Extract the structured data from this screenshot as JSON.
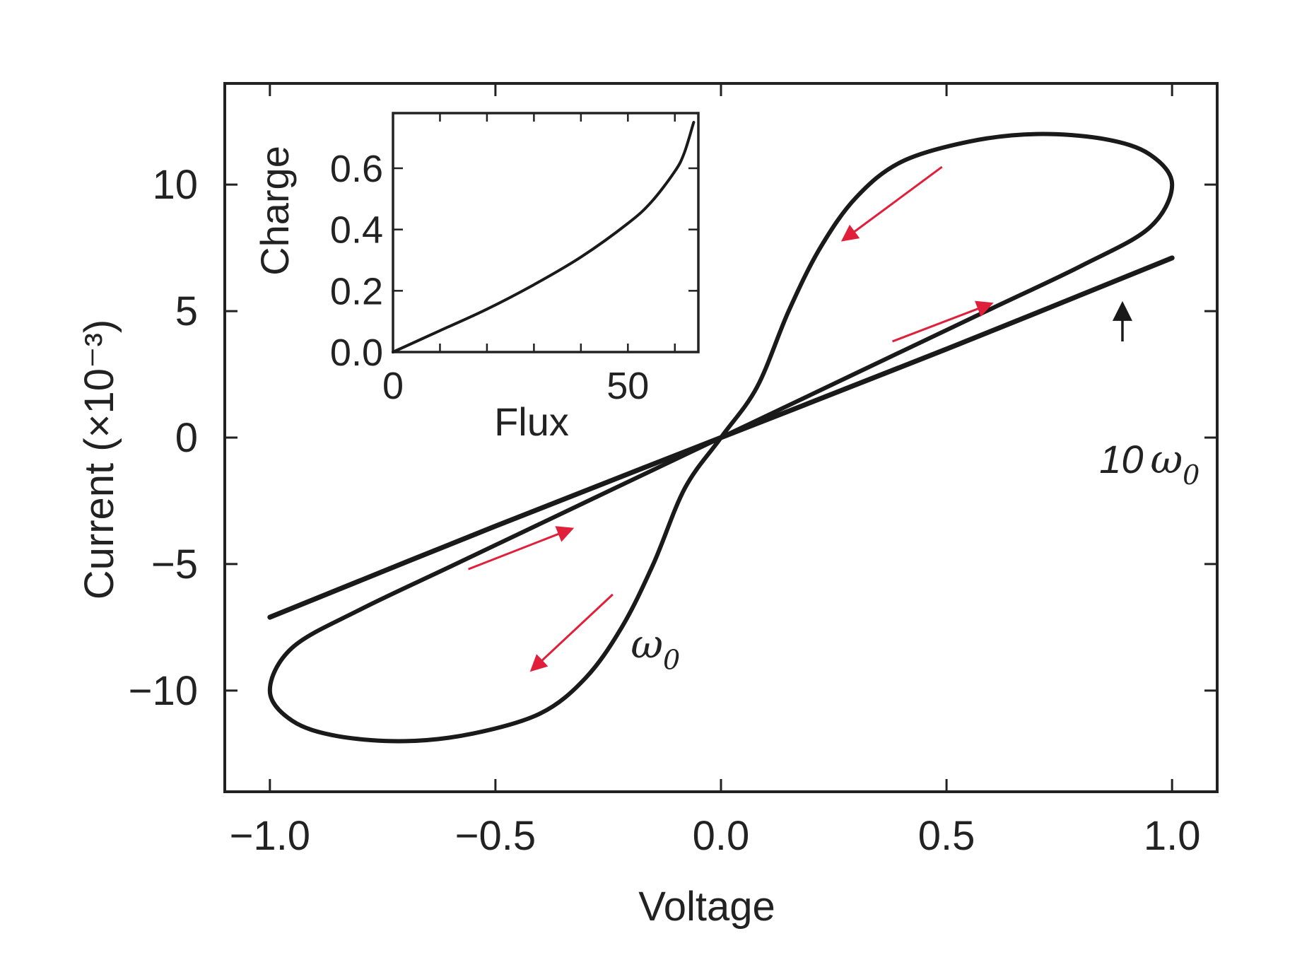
{
  "chart_data": {
    "type": "line",
    "xlabel": "Voltage",
    "ylabel": "Current (×10⁻³)",
    "xlim": [
      -1.1,
      1.1
    ],
    "ylim": [
      -14,
      14
    ],
    "xticks": [
      -1.0,
      -0.5,
      0.0,
      0.5,
      1.0
    ],
    "xtick_labels": [
      "−1.0",
      "−0.5",
      "0.0",
      "0.5",
      "1.0"
    ],
    "yticks": [
      -10,
      -5,
      0,
      5,
      10
    ],
    "ytick_labels": [
      "−10",
      "−5",
      "0",
      "5",
      "10"
    ],
    "grid": false,
    "series": [
      {
        "name": "ω₀",
        "shape": "pinched hysteresis loop",
        "points": [
          [
            1.0,
            10.0
          ],
          [
            0.95,
            11.2
          ],
          [
            0.85,
            11.8
          ],
          [
            0.7,
            12.0
          ],
          [
            0.55,
            11.7
          ],
          [
            0.4,
            10.9
          ],
          [
            0.3,
            9.5
          ],
          [
            0.22,
            7.5
          ],
          [
            0.15,
            5.0
          ],
          [
            0.08,
            2.0
          ],
          [
            0.0,
            0.0
          ],
          [
            -0.08,
            -2.0
          ],
          [
            -0.15,
            -5.0
          ],
          [
            -0.22,
            -7.5
          ],
          [
            -0.3,
            -9.5
          ],
          [
            -0.4,
            -10.9
          ],
          [
            -0.55,
            -11.7
          ],
          [
            -0.7,
            -12.0
          ],
          [
            -0.85,
            -11.8
          ],
          [
            -0.95,
            -11.2
          ],
          [
            -1.0,
            -10.0
          ],
          [
            -0.95,
            -8.3
          ],
          [
            -0.8,
            -6.8
          ],
          [
            -0.6,
            -5.1
          ],
          [
            -0.4,
            -3.4
          ],
          [
            -0.2,
            -1.7
          ],
          [
            0.0,
            0.0
          ],
          [
            0.2,
            1.7
          ],
          [
            0.4,
            3.4
          ],
          [
            0.6,
            5.1
          ],
          [
            0.8,
            6.8
          ],
          [
            0.95,
            8.3
          ],
          [
            1.0,
            10.0
          ]
        ]
      },
      {
        "name": "10ω₀",
        "shape": "nearly linear",
        "points": [
          [
            -1.0,
            -7.1
          ],
          [
            -0.5,
            -3.5
          ],
          [
            0.0,
            0.0
          ],
          [
            0.5,
            3.5
          ],
          [
            1.0,
            7.1
          ]
        ]
      }
    ],
    "annotations": [
      {
        "label_main": "ω",
        "label_sub": "0",
        "at": [
          -0.2,
          -8.7
        ]
      },
      {
        "label_prefix": "10",
        "label_main": "ω",
        "label_sub": "0",
        "at": [
          0.95,
          -1.4
        ],
        "arrow_to": [
          0.89,
          5.3
        ]
      }
    ],
    "direction_arrows": [
      {
        "from": [
          0.49,
          10.7
        ],
        "to": [
          0.27,
          7.8
        ]
      },
      {
        "from": [
          0.38,
          3.8
        ],
        "to": [
          0.6,
          5.3
        ]
      },
      {
        "from": [
          -0.56,
          -5.2
        ],
        "to": [
          -0.33,
          -3.6
        ]
      },
      {
        "from": [
          -0.24,
          -6.2
        ],
        "to": [
          -0.42,
          -9.2
        ]
      }
    ],
    "inset": {
      "type": "line",
      "xlabel": "Flux",
      "ylabel": "Charge",
      "xlim": [
        0,
        65
      ],
      "ylim": [
        0,
        0.78
      ],
      "xticks": [
        0,
        50
      ],
      "xtick_labels": [
        "0",
        "50"
      ],
      "yticks": [
        0.0,
        0.2,
        0.4,
        0.6
      ],
      "ytick_labels": [
        "0.0",
        "0.2",
        "0.4",
        "0.6"
      ],
      "points": [
        [
          0,
          0.0
        ],
        [
          10,
          0.07
        ],
        [
          20,
          0.14
        ],
        [
          30,
          0.22
        ],
        [
          40,
          0.31
        ],
        [
          50,
          0.42
        ],
        [
          55,
          0.49
        ],
        [
          60,
          0.59
        ],
        [
          62,
          0.65
        ],
        [
          64,
          0.75
        ]
      ]
    }
  },
  "colors": {
    "curve": "#1a1a1a",
    "frame": "#222222",
    "arrow_red": "#e0203a",
    "arrow_black": "#1a1a1a"
  }
}
